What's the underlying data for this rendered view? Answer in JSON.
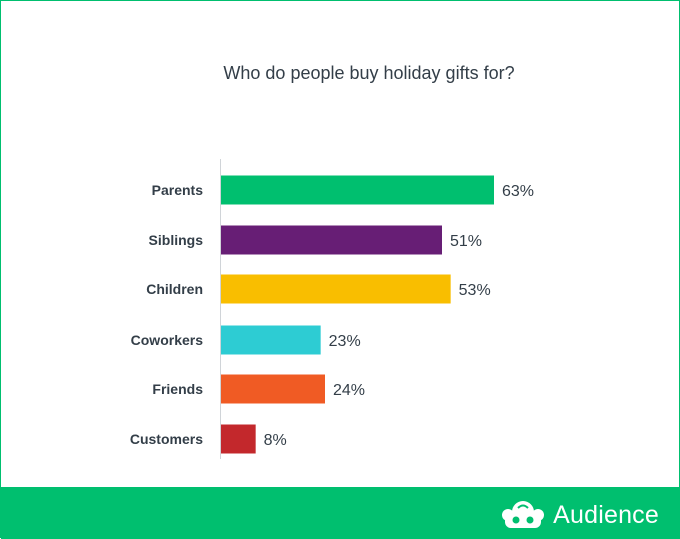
{
  "chart_data": {
    "type": "bar",
    "orientation": "horizontal",
    "title": "Who do people buy holiday gifts for?",
    "categories": [
      "Parents",
      "Siblings",
      "Children",
      "Coworkers",
      "Friends",
      "Customers"
    ],
    "values": [
      63,
      51,
      53,
      23,
      24,
      8
    ],
    "value_labels": [
      "63%",
      "51%",
      "53%",
      "23%",
      "24%",
      "8%"
    ],
    "colors": [
      "#00bf6f",
      "#671e75",
      "#f9be00",
      "#2dccd3",
      "#f05b24",
      "#c3282c"
    ],
    "xlabel": "",
    "ylabel": "",
    "grid": false,
    "legend": "none"
  },
  "footer": {
    "brand_name": "Audience",
    "logo_icon": "surveymonkey-logo-icon",
    "background": "#00bf6f"
  }
}
